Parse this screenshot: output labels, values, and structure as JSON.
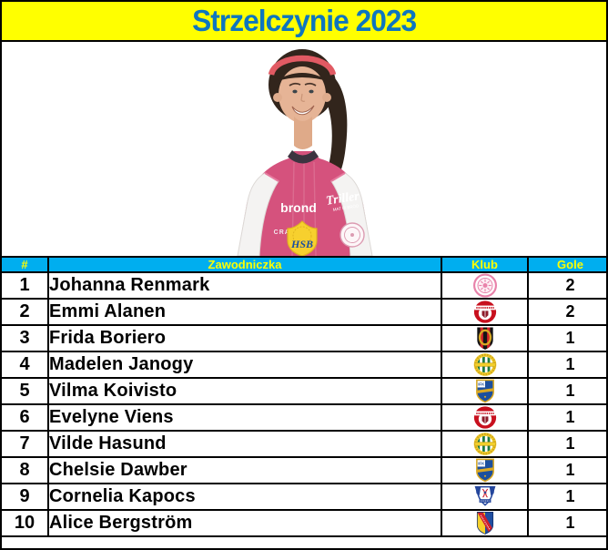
{
  "title": "Strzelczynie 2023",
  "colors": {
    "banner_bg": "#ffff00",
    "banner_text": "#0e76bf",
    "table_header_bg": "#00aeef",
    "table_header_text": "#ffff00",
    "border": "#000000",
    "jersey_pink": "#d5527d",
    "headband_red": "#e15a63"
  },
  "photo": {
    "description": "player-portrait",
    "sponsors": {
      "left": "brond",
      "left_small": "CRAFT",
      "right": "Triller",
      "right_small": "MAT till BRÖD",
      "center_crest": "HSB"
    }
  },
  "table": {
    "headers": {
      "rank": "#",
      "player": "Zawodniczka",
      "club": "Klub",
      "goals": "Gole"
    },
    "rows": [
      {
        "rank": "1",
        "player": "Johanna Renmark",
        "club": "IK Uppsala",
        "logo": "uppsala",
        "goals": "2"
      },
      {
        "rank": "2",
        "player": "Emmi Alanen",
        "club": "Kristianstads DFF",
        "logo": "kristianstad",
        "goals": "2"
      },
      {
        "rank": "3",
        "player": "Frida Boriero",
        "club": "IF Brommapojkarna",
        "logo": "brommapojkarna",
        "goals": "1"
      },
      {
        "rank": "4",
        "player": "Madelen Janogy",
        "club": "Hammarby IF",
        "logo": "hammarby",
        "goals": "1"
      },
      {
        "rank": "5",
        "player": "Vilma Koivisto",
        "club": "IFK Norrköping",
        "logo": "norrkoping",
        "goals": "1"
      },
      {
        "rank": "6",
        "player": "Evelyne Viens",
        "club": "Kristianstads DFF",
        "logo": "kristianstad",
        "goals": "1"
      },
      {
        "rank": "7",
        "player": "Vilde Hasund",
        "club": "Hammarby IF",
        "logo": "hammarby",
        "goals": "1"
      },
      {
        "rank": "8",
        "player": "Chelsie Dawber",
        "club": "IFK Norrköping",
        "logo": "norrkoping",
        "goals": "1"
      },
      {
        "rank": "9",
        "player": "Cornelia Kapocs",
        "club": "Linköping FC",
        "logo": "linkoping",
        "goals": "1"
      },
      {
        "rank": "10",
        "player": "Alice Bergström",
        "club": "Djurgårdens IF",
        "logo": "djurgarden",
        "goals": "1"
      }
    ]
  },
  "chart_data": {
    "type": "table",
    "title": "Strzelczynie 2023",
    "columns": [
      "#",
      "Zawodniczka",
      "Klub",
      "Gole"
    ],
    "rows": [
      [
        1,
        "Johanna Renmark",
        "IK Uppsala",
        2
      ],
      [
        2,
        "Emmi Alanen",
        "Kristianstads DFF",
        2
      ],
      [
        3,
        "Frida Boriero",
        "IF Brommapojkarna",
        1
      ],
      [
        4,
        "Madelen Janogy",
        "Hammarby IF",
        1
      ],
      [
        5,
        "Vilma Koivisto",
        "IFK Norrköping",
        1
      ],
      [
        6,
        "Evelyne Viens",
        "Kristianstads DFF",
        1
      ],
      [
        7,
        "Vilde Hasund",
        "Hammarby IF",
        1
      ],
      [
        8,
        "Chelsie Dawber",
        "IFK Norrköping",
        1
      ],
      [
        9,
        "Cornelia Kapocs",
        "Linköping FC",
        1
      ],
      [
        10,
        "Alice Bergström",
        "Djurgårdens IF",
        1
      ]
    ]
  }
}
